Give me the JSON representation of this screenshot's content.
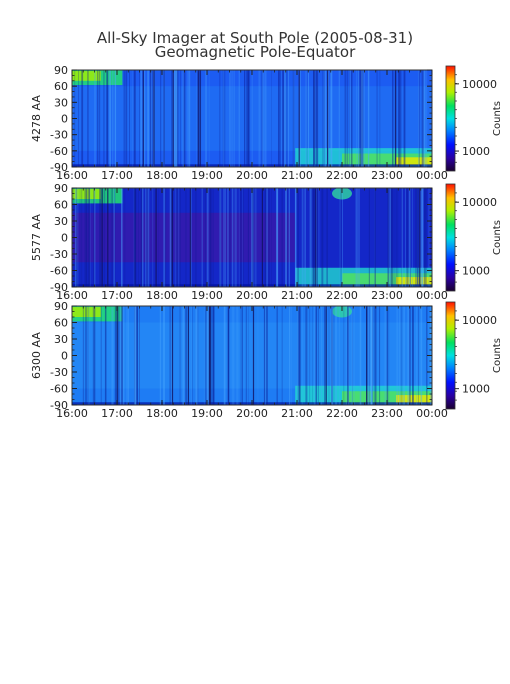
{
  "title": "All-Sky Imager at South Pole (2005-08-31)",
  "subtitle": "Geomagnetic Pole-Equator",
  "chart_data": [
    {
      "type": "heatmap",
      "ylabel": "4278 AA",
      "colorbar_label": "Counts",
      "colorbar_ticks": [
        "10000",
        "1000"
      ],
      "x_ticks": [
        "16:00",
        "17:00",
        "18:00",
        "19:00",
        "20:00",
        "21:00",
        "22:00",
        "23:00",
        "00:00"
      ],
      "y_ticks": [
        "90",
        "60",
        "30",
        "0",
        "-30",
        "-60",
        "-90"
      ],
      "xlim": [
        "16:00",
        "00:00"
      ],
      "ylim": [
        -90,
        90
      ]
    },
    {
      "type": "heatmap",
      "ylabel": "5577 AA",
      "colorbar_label": "Counts",
      "colorbar_ticks": [
        "10000",
        "1000"
      ],
      "x_ticks": [
        "16:00",
        "17:00",
        "18:00",
        "19:00",
        "20:00",
        "21:00",
        "22:00",
        "23:00",
        "00:00"
      ],
      "y_ticks": [
        "90",
        "60",
        "30",
        "0",
        "-30",
        "-60",
        "-90"
      ],
      "xlim": [
        "16:00",
        "00:00"
      ],
      "ylim": [
        -90,
        90
      ]
    },
    {
      "type": "heatmap",
      "ylabel": "6300 AA",
      "colorbar_label": "Counts",
      "colorbar_ticks": [
        "10000",
        "1000"
      ],
      "x_ticks": [
        "16:00",
        "17:00",
        "18:00",
        "19:00",
        "20:00",
        "21:00",
        "22:00",
        "23:00",
        "00:00"
      ],
      "y_ticks": [
        "90",
        "60",
        "30",
        "0",
        "-30",
        "-60",
        "-90"
      ],
      "xlim": [
        "16:00",
        "00:00"
      ],
      "ylim": [
        -90,
        90
      ]
    }
  ]
}
